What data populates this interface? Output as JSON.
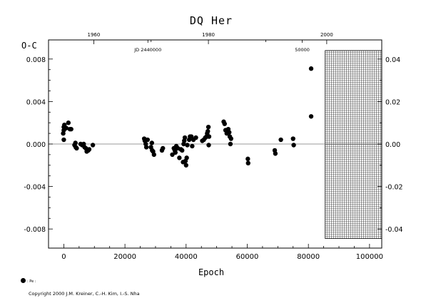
{
  "chart_data": {
    "type": "scatter",
    "title": "DQ Her",
    "ylabel": "O-C",
    "xlabel": "Epoch",
    "xlim": [
      -5000,
      104000
    ],
    "ylim": [
      -0.0098,
      0.0098
    ],
    "right_ylim": [
      -0.049,
      0.049
    ],
    "x_ticks": [
      {
        "value": 0,
        "label": "0"
      },
      {
        "value": 20000,
        "label": "20000"
      },
      {
        "value": 40000,
        "label": "40000"
      },
      {
        "value": 60000,
        "label": "60000"
      },
      {
        "value": 80000,
        "label": "80000"
      },
      {
        "value": 100000,
        "label": "100000"
      }
    ],
    "y_ticks": [
      {
        "value": 0.008,
        "label": "0.008"
      },
      {
        "value": 0.004,
        "label": "0.004"
      },
      {
        "value": 0.0,
        "label": "0.000"
      },
      {
        "value": -0.004,
        "label": "-0.004"
      },
      {
        "value": -0.008,
        "label": "-0.008"
      }
    ],
    "right_y_ticks": [
      {
        "value": 0.04,
        "label": "0.04"
      },
      {
        "value": 0.02,
        "label": "0.02"
      },
      {
        "value": 0.0,
        "label": "0.00"
      },
      {
        "value": -0.02,
        "label": "-0.02"
      },
      {
        "value": -0.04,
        "label": "-0.04"
      }
    ],
    "top_ticks": [
      {
        "epoch": 9800,
        "label": "1960"
      },
      {
        "epoch": 47300,
        "label": "1980"
      },
      {
        "epoch": 86000,
        "label": "2000"
      }
    ],
    "top_annotations": [
      {
        "epoch": 27500,
        "label": "JD 2440000"
      },
      {
        "epoch": 78000,
        "label": "50000"
      }
    ],
    "hatched_region": {
      "x_from": 85500,
      "x_to": 104000,
      "y_from": 0.0088,
      "y_to": -0.0089
    },
    "series": [
      {
        "name": "Pe",
        "points": [
          [
            0,
            0.0004
          ],
          [
            -200,
            0.001
          ],
          [
            0,
            0.0013
          ],
          [
            0,
            0.0016
          ],
          [
            200,
            0.0018
          ],
          [
            800,
            0.0015
          ],
          [
            1500,
            0.002
          ],
          [
            2000,
            0.0014
          ],
          [
            2400,
            0.0014
          ],
          [
            3500,
            -0.0001
          ],
          [
            3800,
            0.0001
          ],
          [
            3900,
            -0.0003
          ],
          [
            4200,
            -0.0004
          ],
          [
            5500,
            0.0
          ],
          [
            6000,
            -0.0001
          ],
          [
            6500,
            0.0
          ],
          [
            6800,
            -0.0003
          ],
          [
            7200,
            -0.0004
          ],
          [
            7500,
            -0.0007
          ],
          [
            8000,
            -0.0006
          ],
          [
            8300,
            -0.0005
          ],
          [
            9500,
            -0.0001
          ],
          [
            26300,
            0.0005
          ],
          [
            26500,
            0.0003
          ],
          [
            26800,
            0.0
          ],
          [
            27000,
            -0.0003
          ],
          [
            27400,
            0.0004
          ],
          [
            28500,
            -0.0003
          ],
          [
            28900,
            -0.0006
          ],
          [
            29200,
            -0.0007
          ],
          [
            29500,
            -0.001
          ],
          [
            28800,
            0.0001
          ],
          [
            32100,
            -0.0006
          ],
          [
            32400,
            -0.0004
          ],
          [
            35500,
            -0.001
          ],
          [
            36000,
            -0.0004
          ],
          [
            36300,
            -0.0006
          ],
          [
            36500,
            -0.0008
          ],
          [
            36800,
            -0.0002
          ],
          [
            37300,
            -0.0004
          ],
          [
            37800,
            -0.0013
          ],
          [
            38300,
            -0.0005
          ],
          [
            38700,
            -0.0006
          ],
          [
            39000,
            -0.0017
          ],
          [
            39200,
            0.0
          ],
          [
            39400,
            0.0003
          ],
          [
            39600,
            0.0006
          ],
          [
            39800,
            -0.0016
          ],
          [
            40000,
            -0.002
          ],
          [
            40200,
            -0.0013
          ],
          [
            40400,
            -0.0001
          ],
          [
            41000,
            0.0004
          ],
          [
            41300,
            0.0007
          ],
          [
            41700,
            0.0007
          ],
          [
            42000,
            -0.0002
          ],
          [
            42400,
            0.0004
          ],
          [
            43200,
            0.0006
          ],
          [
            45300,
            0.0003
          ],
          [
            45800,
            0.0004
          ],
          [
            46300,
            0.0006
          ],
          [
            46700,
            0.0007
          ],
          [
            46900,
            0.001
          ],
          [
            47100,
            0.0012
          ],
          [
            47300,
            0.0016
          ],
          [
            47500,
            0.0007
          ],
          [
            47400,
            -0.0001
          ],
          [
            52300,
            0.0021
          ],
          [
            52600,
            0.0019
          ],
          [
            52900,
            0.0013
          ],
          [
            53300,
            0.001
          ],
          [
            53800,
            0.0014
          ],
          [
            54100,
            0.0011
          ],
          [
            54300,
            0.0007
          ],
          [
            54700,
            0.0005
          ],
          [
            54500,
            0.0
          ],
          [
            60200,
            -0.0014
          ],
          [
            60300,
            -0.0018
          ],
          [
            69000,
            -0.0006
          ],
          [
            69200,
            -0.0009
          ],
          [
            71000,
            0.0004
          ],
          [
            75000,
            0.0005
          ],
          [
            75200,
            -0.0001
          ],
          [
            80900,
            0.0071
          ],
          [
            80900,
            0.0026
          ]
        ]
      }
    ],
    "zero_line": true,
    "grid": false
  },
  "legend": {
    "symbol_label": ": Pe :"
  },
  "copyright": "Copyright 2000 J.M. Kreiner, C.-H. Kim, I.-S. Nha"
}
